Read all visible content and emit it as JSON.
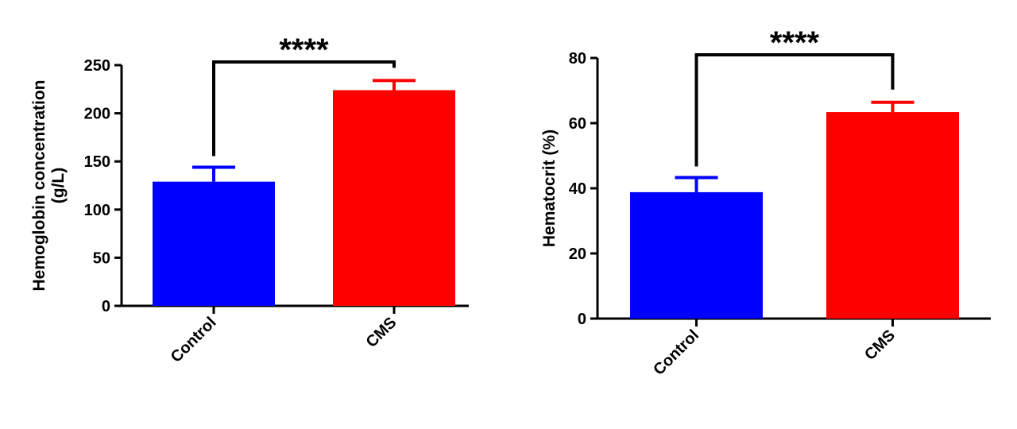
{
  "chart_data": [
    {
      "type": "bar",
      "y_label": [
        "Hemoglobin concentration",
        "(g/L)"
      ],
      "annotation": "****",
      "categories": [
        "Control",
        "CMS"
      ],
      "values": [
        129,
        224
      ],
      "errors": [
        15,
        10
      ],
      "colors": [
        "#0000ff",
        "#ff0000"
      ],
      "ylim": [
        0,
        250
      ],
      "yticks": [
        0,
        50,
        100,
        150,
        200,
        250
      ]
    },
    {
      "type": "bar",
      "y_label": [
        "Hematocrit (%)"
      ],
      "annotation": "****",
      "categories": [
        "Control",
        "CMS"
      ],
      "values": [
        38.8,
        63.4
      ],
      "errors": [
        4.5,
        3
      ],
      "colors": [
        "#0000ff",
        "#ff0000"
      ],
      "ylim": [
        0,
        80
      ],
      "yticks": [
        0,
        20,
        40,
        60,
        80
      ]
    }
  ]
}
